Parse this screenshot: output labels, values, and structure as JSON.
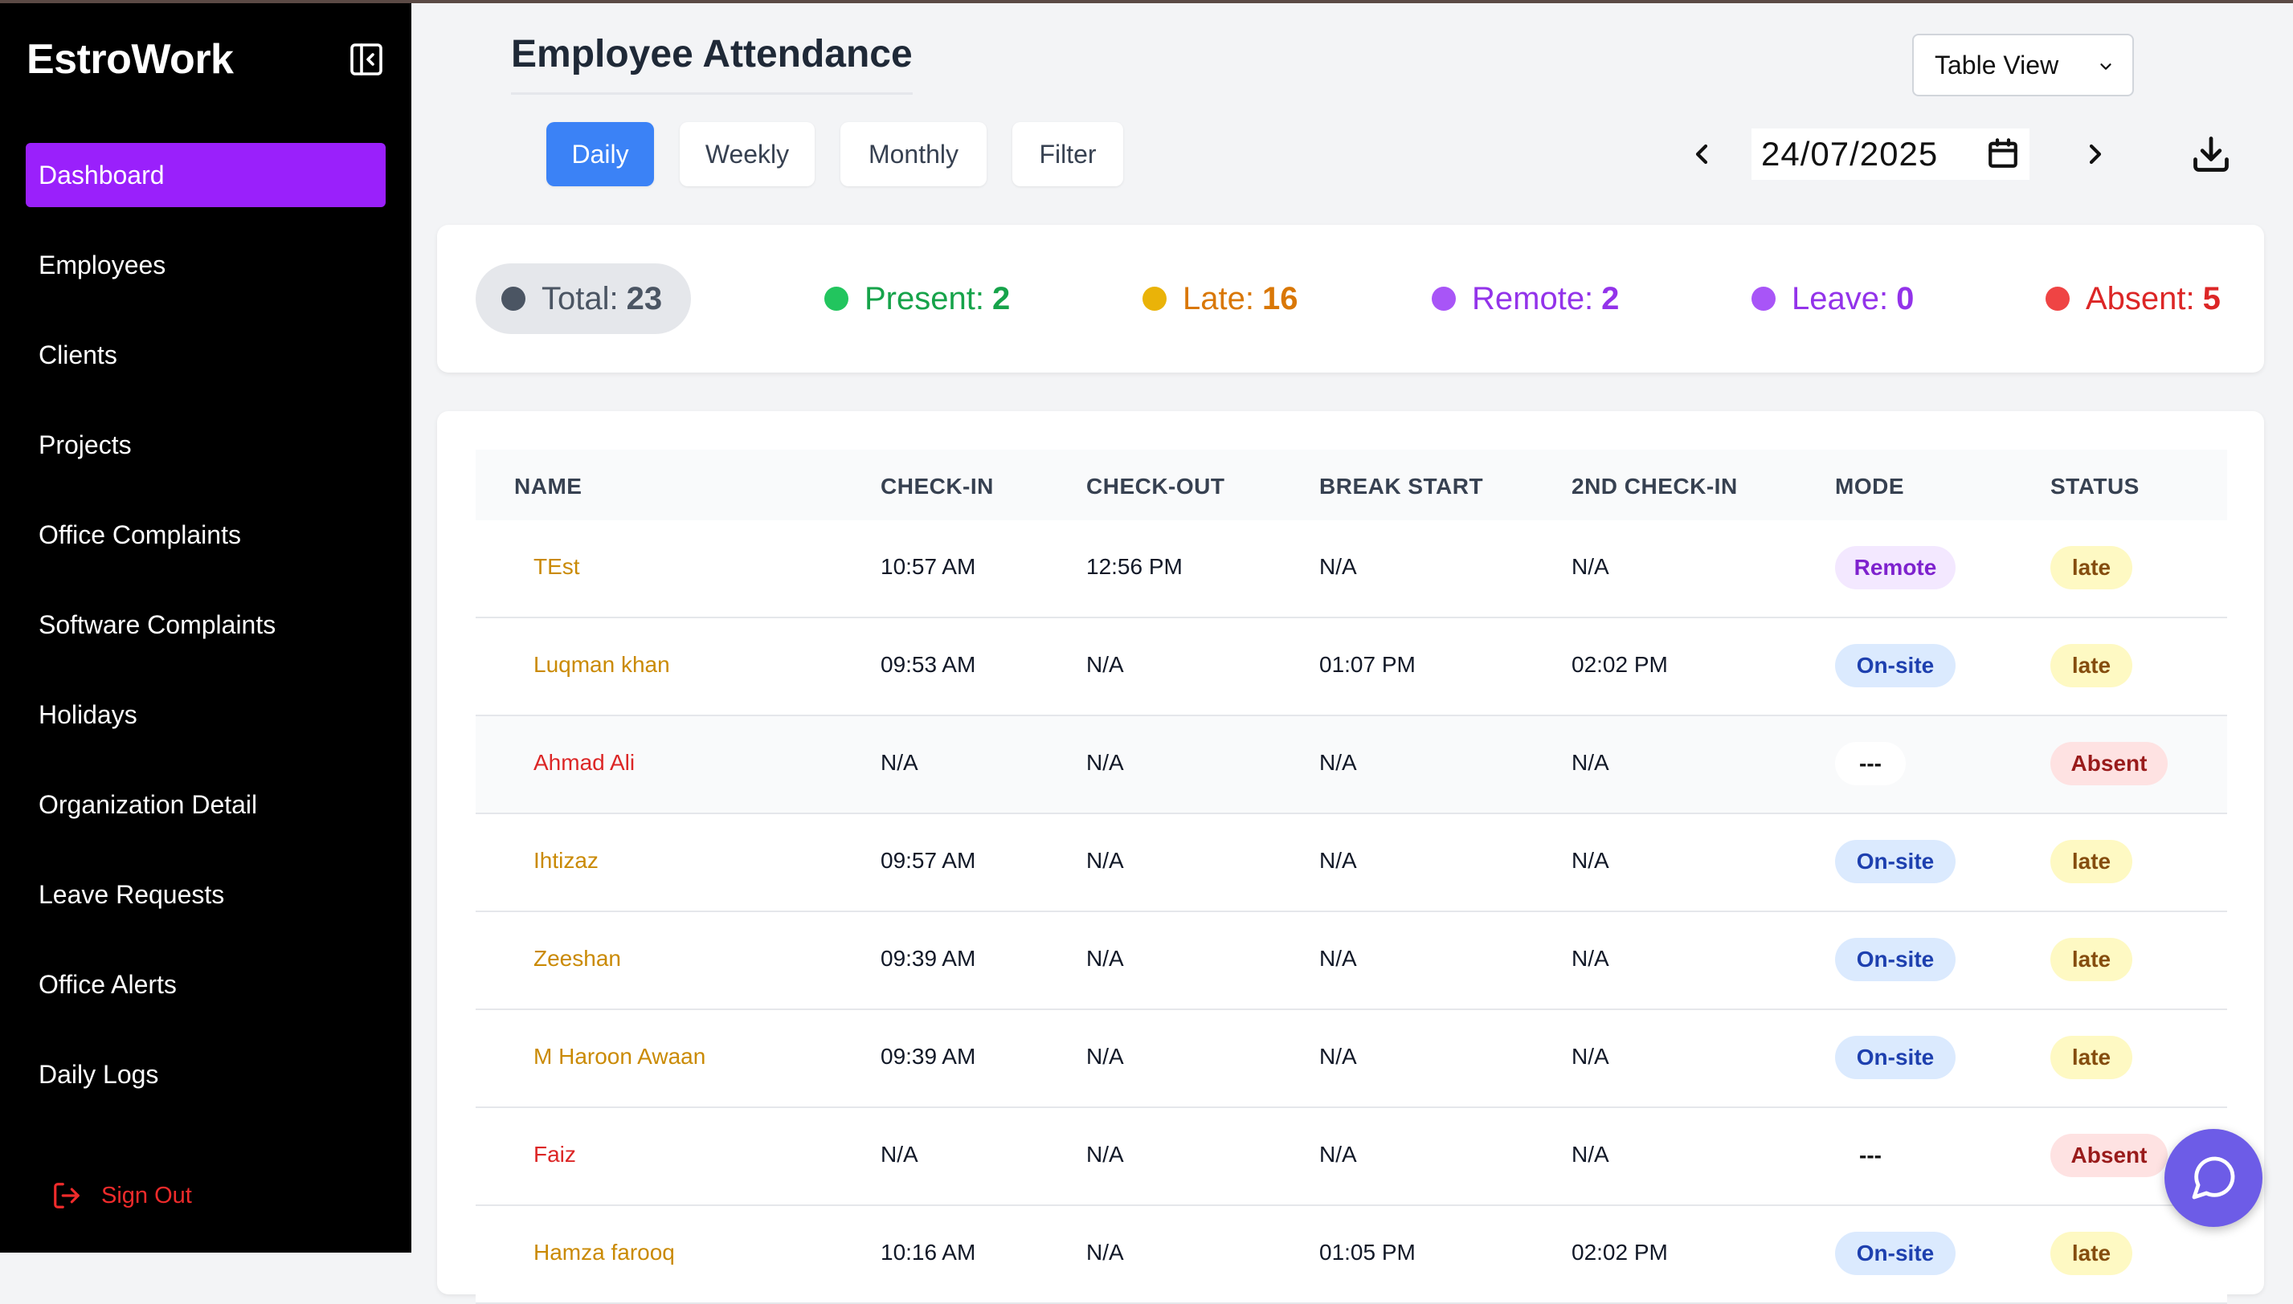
{
  "app": {
    "brand": "EstroWork"
  },
  "sidebar": {
    "items": [
      {
        "label": "Dashboard",
        "active": true
      },
      {
        "label": "Employees"
      },
      {
        "label": "Clients"
      },
      {
        "label": "Projects"
      },
      {
        "label": "Office Complaints"
      },
      {
        "label": "Software Complaints"
      },
      {
        "label": "Holidays"
      },
      {
        "label": "Organization Detail"
      },
      {
        "label": "Leave Requests"
      },
      {
        "label": "Office Alerts"
      },
      {
        "label": "Daily Logs"
      }
    ],
    "signout_label": "Sign Out"
  },
  "header": {
    "title": "Employee Attendance",
    "view_select": {
      "selected": "Table View"
    },
    "tabs": [
      {
        "label": "Daily",
        "active": true
      },
      {
        "label": "Weekly"
      },
      {
        "label": "Monthly"
      },
      {
        "label": "Filter"
      }
    ],
    "date_value": "24/07/2025"
  },
  "summary": {
    "total": {
      "label": "Total:",
      "value": "23"
    },
    "present": {
      "label": "Present:",
      "value": "2"
    },
    "late": {
      "label": "Late:",
      "value": "16"
    },
    "remote": {
      "label": "Remote:",
      "value": "2"
    },
    "leave": {
      "label": "Leave:",
      "value": "0"
    },
    "absent": {
      "label": "Absent:",
      "value": "5"
    }
  },
  "table": {
    "columns": [
      "NAME",
      "CHECK-IN",
      "CHECK-OUT",
      "BREAK START",
      "2ND CHECK-IN",
      "MODE",
      "STATUS"
    ],
    "rows": [
      {
        "name": "TEst",
        "check_in": "10:57 AM",
        "check_out": "12:56 PM",
        "break_start": "N/A",
        "second_check_in": "N/A",
        "mode": "Remote",
        "status": "late"
      },
      {
        "name": "Luqman khan",
        "check_in": "09:53 AM",
        "check_out": "N/A",
        "break_start": "01:07 PM",
        "second_check_in": "02:02 PM",
        "mode": "On-site",
        "status": "late"
      },
      {
        "name": "Ahmad Ali",
        "check_in": "N/A",
        "check_out": "N/A",
        "break_start": "N/A",
        "second_check_in": "N/A",
        "mode": "---",
        "status": "Absent"
      },
      {
        "name": "Ihtizaz",
        "check_in": "09:57 AM",
        "check_out": "N/A",
        "break_start": "N/A",
        "second_check_in": "N/A",
        "mode": "On-site",
        "status": "late"
      },
      {
        "name": "Zeeshan",
        "check_in": "09:39 AM",
        "check_out": "N/A",
        "break_start": "N/A",
        "second_check_in": "N/A",
        "mode": "On-site",
        "status": "late"
      },
      {
        "name": "M Haroon Awaan",
        "check_in": "09:39 AM",
        "check_out": "N/A",
        "break_start": "N/A",
        "second_check_in": "N/A",
        "mode": "On-site",
        "status": "late"
      },
      {
        "name": "Faiz",
        "check_in": "N/A",
        "check_out": "N/A",
        "break_start": "N/A",
        "second_check_in": "N/A",
        "mode": "---",
        "status": "Absent"
      },
      {
        "name": "Hamza farooq",
        "check_in": "10:16 AM",
        "check_out": "N/A",
        "break_start": "01:05 PM",
        "second_check_in": "02:02 PM",
        "mode": "On-site",
        "status": "late"
      }
    ]
  },
  "colors": {
    "sidebar_bg": "#000000",
    "active_nav": "#9a20fb",
    "primary_tab": "#3b82f6",
    "present": "#16a34a",
    "late": "#d97706",
    "remote": "#9333ea",
    "absent": "#dc2626",
    "chat_fab": "#6d5ce7"
  },
  "icons": {
    "collapse": "collapse-sidebar-icon",
    "signout": "sign-out-icon",
    "calendar": "calendar-icon",
    "prev": "chevron-left-icon",
    "next": "chevron-right-icon",
    "download": "download-icon",
    "chat": "chat-bubble-icon"
  }
}
